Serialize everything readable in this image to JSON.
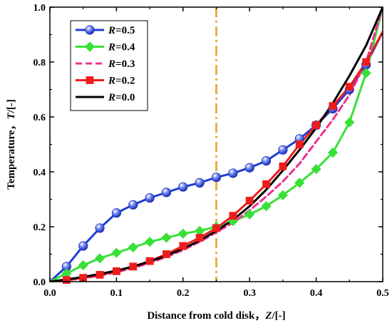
{
  "chart_data": {
    "type": "line",
    "xlabel": "Distance from cold disk，Z/[-]",
    "ylabel": "Temperature，T/[-]",
    "xlabel_prefix": "Distance from cold disk，",
    "xlabel_var": "Z",
    "xlabel_unit": "/[-]",
    "ylabel_prefix": "Temperature，",
    "ylabel_var": "T",
    "ylabel_unit": "/[-]",
    "xlim": [
      0.0,
      0.5
    ],
    "ylim": [
      0.0,
      1.0
    ],
    "xticks": [
      "0.0",
      "0.1",
      "0.2",
      "0.3",
      "0.4",
      "0.5"
    ],
    "yticks": [
      "0.0",
      "0.2",
      "0.4",
      "0.6",
      "0.8",
      "1.0"
    ],
    "xtick_values": [
      0.0,
      0.1,
      0.2,
      0.3,
      0.4,
      0.5
    ],
    "ytick_values": [
      0.0,
      0.2,
      0.4,
      0.6,
      0.8,
      1.0
    ],
    "grid": false,
    "legend_position": "top-left",
    "reference_line": {
      "x": 0.25,
      "color": "#e8b04a",
      "style": "dash-dot"
    },
    "series": [
      {
        "name": "R=0.5",
        "var": "R",
        "val": "=0.5",
        "color": "#1f3fd1",
        "marker": "sphere",
        "dash": "",
        "x": [
          0,
          0.025,
          0.05,
          0.075,
          0.1,
          0.125,
          0.15,
          0.175,
          0.2,
          0.225,
          0.25,
          0.275,
          0.3,
          0.325,
          0.35,
          0.375,
          0.4,
          0.425,
          0.45,
          0.475,
          0.5
        ],
        "y": [
          0.0,
          0.055,
          0.13,
          0.195,
          0.25,
          0.28,
          0.305,
          0.325,
          0.345,
          0.36,
          0.38,
          0.395,
          0.415,
          0.44,
          0.48,
          0.52,
          0.57,
          0.63,
          0.7,
          0.79,
          0.91
        ]
      },
      {
        "name": "R=0.4",
        "var": "R",
        "val": "=0.4",
        "color": "#38e038",
        "marker": "diamond",
        "dash": "",
        "x": [
          0,
          0.025,
          0.05,
          0.075,
          0.1,
          0.125,
          0.15,
          0.175,
          0.2,
          0.225,
          0.25,
          0.275,
          0.3,
          0.325,
          0.35,
          0.375,
          0.4,
          0.425,
          0.45,
          0.475,
          0.5
        ],
        "y": [
          0.0,
          0.03,
          0.06,
          0.085,
          0.105,
          0.125,
          0.145,
          0.16,
          0.175,
          0.185,
          0.2,
          0.22,
          0.245,
          0.275,
          0.315,
          0.36,
          0.41,
          0.47,
          0.58,
          0.76,
          1.0
        ]
      },
      {
        "name": "R=0.3",
        "var": "R",
        "val": "=0.3",
        "color": "#ee2f8c",
        "marker": "",
        "dash": "9,5",
        "x": [
          0,
          0.025,
          0.05,
          0.075,
          0.1,
          0.125,
          0.15,
          0.175,
          0.2,
          0.225,
          0.25,
          0.275,
          0.3,
          0.325,
          0.35,
          0.375,
          0.4,
          0.425,
          0.45,
          0.475,
          0.5
        ],
        "y": [
          0.0,
          0.005,
          0.012,
          0.022,
          0.034,
          0.05,
          0.068,
          0.09,
          0.115,
          0.145,
          0.18,
          0.215,
          0.26,
          0.31,
          0.365,
          0.43,
          0.51,
          0.59,
          0.68,
          0.8,
          1.0
        ]
      },
      {
        "name": "R=0.2",
        "var": "R",
        "val": "=0.2",
        "color": "#ee1c1c",
        "marker": "square",
        "dash": "",
        "x": [
          0,
          0.025,
          0.05,
          0.075,
          0.1,
          0.125,
          0.15,
          0.175,
          0.2,
          0.225,
          0.25,
          0.275,
          0.3,
          0.325,
          0.35,
          0.375,
          0.4,
          0.425,
          0.45,
          0.475,
          0.5
        ],
        "y": [
          0.0,
          0.006,
          0.014,
          0.025,
          0.038,
          0.055,
          0.075,
          0.1,
          0.13,
          0.16,
          0.195,
          0.24,
          0.295,
          0.355,
          0.42,
          0.5,
          0.57,
          0.64,
          0.71,
          0.8,
          0.91
        ]
      },
      {
        "name": "R=0.0",
        "var": "R",
        "val": "=0.0",
        "color": "#000000",
        "marker": "",
        "dash": "",
        "x": [
          0,
          0.025,
          0.05,
          0.075,
          0.1,
          0.125,
          0.15,
          0.175,
          0.2,
          0.225,
          0.25,
          0.275,
          0.3,
          0.325,
          0.35,
          0.375,
          0.4,
          0.425,
          0.45,
          0.475,
          0.5
        ],
        "y": [
          0.0,
          0.008,
          0.017,
          0.028,
          0.04,
          0.055,
          0.073,
          0.095,
          0.12,
          0.15,
          0.185,
          0.225,
          0.275,
          0.335,
          0.405,
          0.48,
          0.56,
          0.65,
          0.75,
          0.86,
          1.0
        ]
      }
    ]
  }
}
